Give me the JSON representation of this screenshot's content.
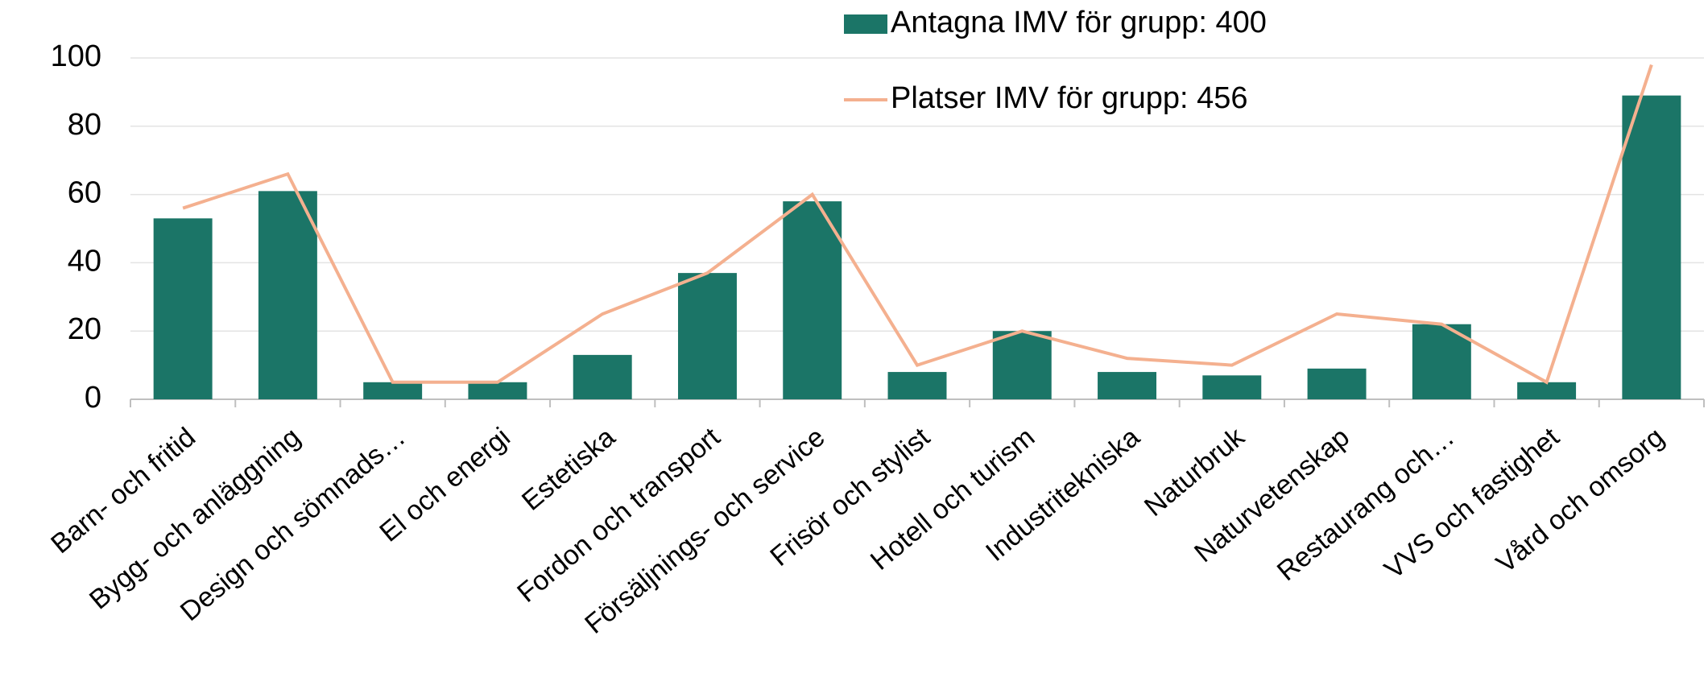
{
  "chart_data": {
    "type": "bar",
    "categories": [
      "Barn- och fritid",
      "Bygg- och anläggning",
      "Design och sömnads…",
      "El och energi",
      "Estetiska",
      "Fordon och transport",
      "Försäljnings- och service",
      "Frisör och stylist",
      "Hotell och turism",
      "Industritekniska",
      "Naturbruk",
      "Naturvetenskap",
      "Restaurang och…",
      "VVS och fastighet",
      "Vård och omsorg"
    ],
    "series": [
      {
        "name": "Antagna IMV för grupp: 400",
        "type": "bar",
        "color": "#1b7567",
        "values": [
          53,
          61,
          5,
          5,
          13,
          37,
          58,
          8,
          20,
          8,
          7,
          9,
          22,
          5,
          89
        ]
      },
      {
        "name": "Platser IMV för grupp: 456",
        "type": "line",
        "color": "#f4b08f",
        "values": [
          56,
          66,
          5,
          5,
          25,
          37,
          60,
          10,
          20,
          12,
          10,
          25,
          22,
          5,
          98
        ]
      }
    ],
    "ylim": [
      0,
      100
    ],
    "yticks": [
      0,
      20,
      40,
      60,
      80,
      100
    ],
    "grid": true
  }
}
